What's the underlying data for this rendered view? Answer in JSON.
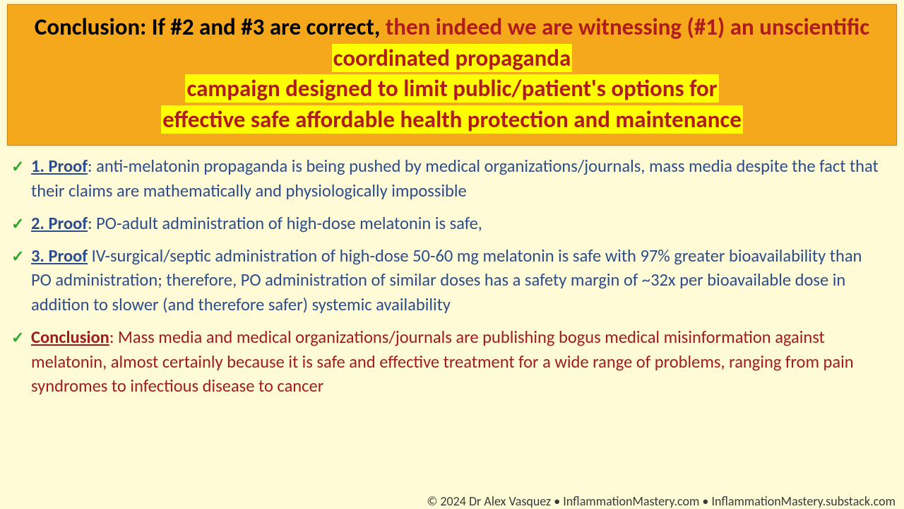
{
  "header": {
    "bg_color": "#f5a81b",
    "black_lead": "Conclusion: If #2 and #3 are correct, ",
    "red_plain_1": "then indeed we are witnessing (#1) an unscientific ",
    "hl_1": "coordinated propaganda",
    "hl_2": "campaign designed to limit public/patient's options for",
    "hl_3": "effective safe affordable health protection and maintenance"
  },
  "items": [
    {
      "label": "1. Proof",
      "color": "blue",
      "body": ": anti-melatonin propaganda is being pushed by medical organizations/journals, mass media despite the fact that their claims are mathematically and physiologically impossible"
    },
    {
      "label": "2. Proof",
      "color": "blue",
      "body": ": PO-adult administration of high-dose melatonin is safe,"
    },
    {
      "label": "3. Proof",
      "color": "blue",
      "body": " IV-surgical/septic administration of high-dose 50-60 mg melatonin is safe with 97% greater bioavailability than PO administration; therefore, PO administration of similar doses has a safety margin of ~32x per bioavailable dose in addition to slower (and therefore safer) systemic availability"
    },
    {
      "label": "Conclusion",
      "color": "red",
      "body": ": Mass media and medical organizations/journals are publishing bogus medical misinformation against melatonin, almost certainly because it is safe and effective treatment for a wide range of problems, ranging from pain syndromes to infectious disease to cancer"
    }
  ],
  "footer": "© 2024 Dr Alex Vasquez • InflammationMastery.com • InflammationMastery.substack.com",
  "colors": {
    "page_bg": "#fffbd6",
    "blue_text": "#2b4d8c",
    "red_text": "#a11c1c",
    "check": "#2aa82a",
    "highlight_bg": "#ffff00"
  }
}
